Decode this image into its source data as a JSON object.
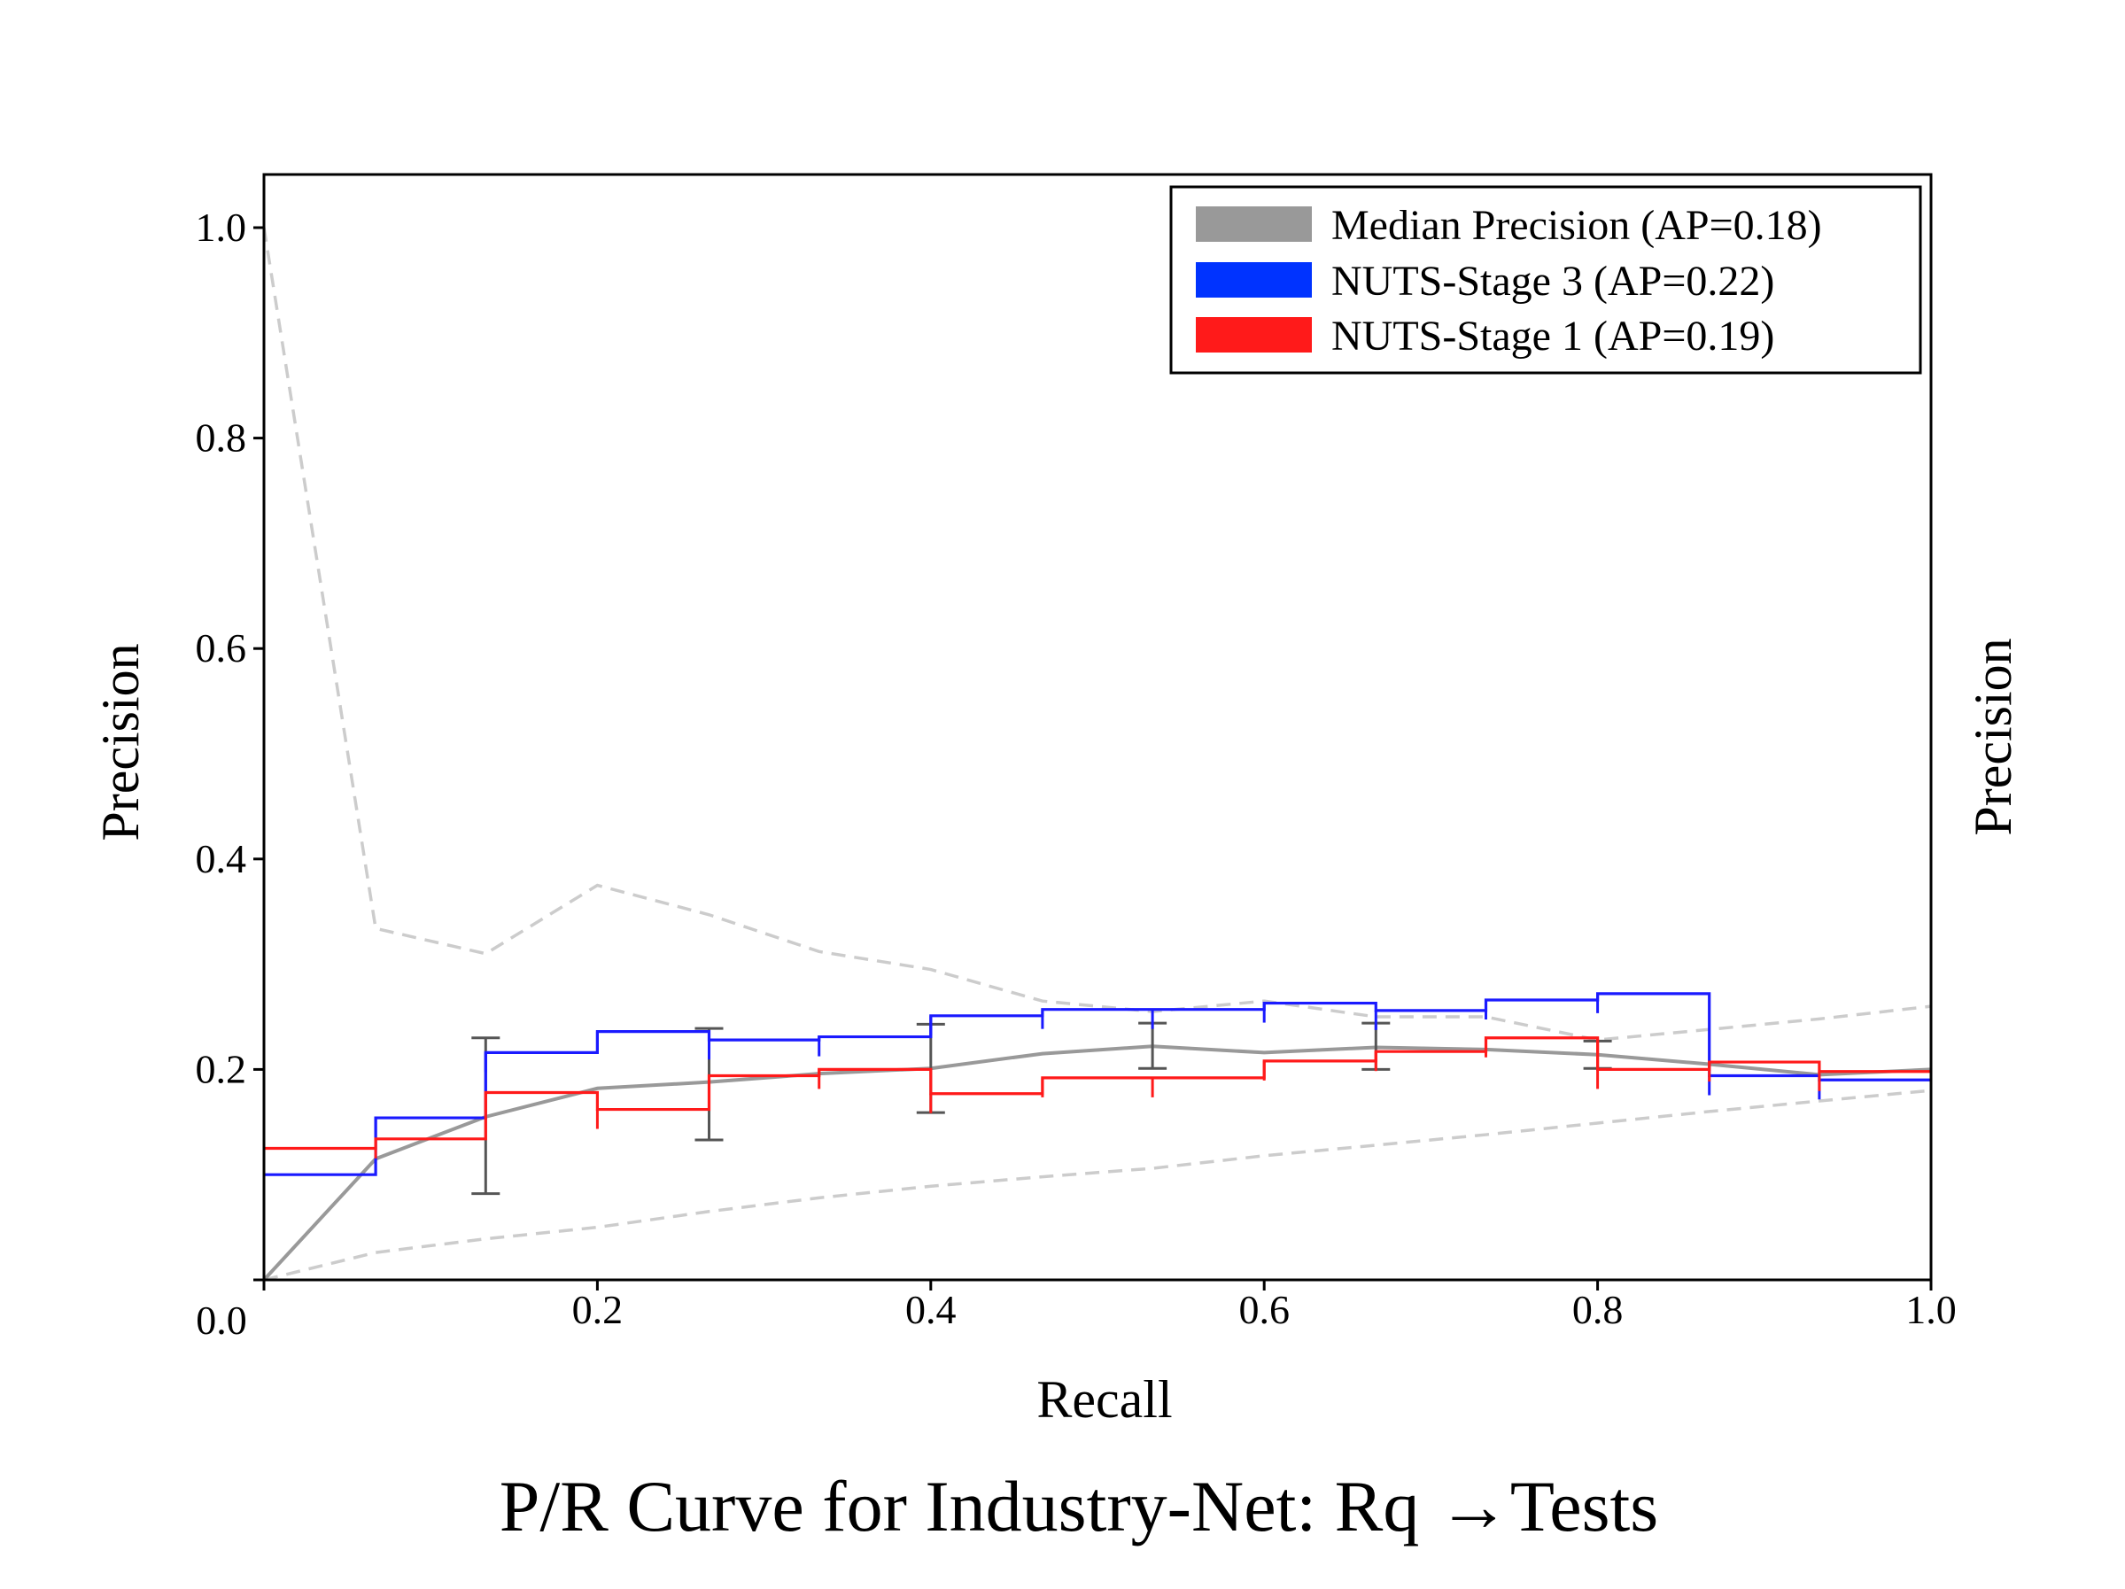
{
  "chart_data": {
    "type": "line",
    "title": "P/R Curve for Industry-Net: Rq →Tests",
    "xlabel": "Recall",
    "ylabel": "Precision",
    "ylabel_right": "Precision",
    "xlim": [
      0,
      1
    ],
    "ylim": [
      0,
      1.05
    ],
    "x_ticks": [
      "0.0",
      "0.2",
      "0.4",
      "0.6",
      "0.8",
      "1.0"
    ],
    "x_tick_values": [
      0,
      0.2,
      0.4,
      0.6,
      0.8,
      1.0
    ],
    "y_ticks": [
      "0.2",
      "0.4",
      "0.6",
      "0.8",
      "1.0"
    ],
    "y_tick_values": [
      0.2,
      0.4,
      0.6,
      0.8,
      1.0
    ],
    "grid": false,
    "legend_position": "top-right",
    "series": [
      {
        "name": "Median Precision (AP=0.18)",
        "style": "line",
        "color": "#999999",
        "x": [
          0,
          0.067,
          0.133,
          0.2,
          0.267,
          0.333,
          0.4,
          0.467,
          0.533,
          0.6,
          0.667,
          0.733,
          0.8,
          0.867,
          0.933,
          1.0
        ],
        "y": [
          0,
          0.115,
          0.155,
          0.182,
          0.188,
          0.196,
          0.201,
          0.215,
          0.222,
          0.216,
          0.221,
          0.219,
          0.214,
          0.205,
          0.195,
          0.2
        ],
        "error_bars": [
          {
            "x": 0.133,
            "low": 0.082,
            "high": 0.23
          },
          {
            "x": 0.267,
            "low": 0.133,
            "high": 0.239
          },
          {
            "x": 0.4,
            "low": 0.159,
            "high": 0.243
          },
          {
            "x": 0.533,
            "low": 0.201,
            "high": 0.244
          },
          {
            "x": 0.667,
            "low": 0.2,
            "high": 0.244
          },
          {
            "x": 0.8,
            "low": 0.201,
            "high": 0.227
          }
        ]
      },
      {
        "name": "NUTS-Stage 3 (AP=0.22)",
        "style": "step",
        "color": "#1a1aff",
        "x": [
          0,
          0.067,
          0.133,
          0.2,
          0.267,
          0.333,
          0.4,
          0.467,
          0.533,
          0.6,
          0.667,
          0.733,
          0.8,
          0.867,
          0.933,
          1.0
        ],
        "y": [
          0.1,
          0.154,
          0.216,
          0.236,
          0.228,
          0.231,
          0.251,
          0.257,
          0.257,
          0.263,
          0.256,
          0.266,
          0.272,
          0.194,
          0.19,
          0.19
        ]
      },
      {
        "name": "NUTS-Stage 1 (AP=0.19)",
        "style": "step",
        "color": "#ff1a1a",
        "x": [
          0,
          0.067,
          0.133,
          0.2,
          0.267,
          0.333,
          0.4,
          0.467,
          0.533,
          0.6,
          0.667,
          0.733,
          0.8,
          0.867,
          0.933,
          1.0
        ],
        "y": [
          0.125,
          0.134,
          0.178,
          0.162,
          0.194,
          0.2,
          0.177,
          0.192,
          0.192,
          0.208,
          0.217,
          0.23,
          0.2,
          0.207,
          0.198,
          0.198
        ]
      },
      {
        "style": "dashed",
        "color": "#cccccc",
        "x": [
          0,
          0.067,
          0.133,
          0.2,
          0.267,
          0.333,
          0.4,
          0.467,
          0.533,
          0.6,
          0.667,
          0.733,
          0.8,
          0.867,
          0.933,
          1.0
        ],
        "y": [
          1.0,
          0.334,
          0.31,
          0.375,
          0.347,
          0.312,
          0.295,
          0.265,
          0.255,
          0.265,
          0.25,
          0.25,
          0.228,
          0.238,
          0.248,
          0.26
        ]
      },
      {
        "style": "dashed",
        "color": "#cccccc",
        "x": [
          0,
          0.067,
          0.133,
          0.2,
          0.267,
          0.333,
          0.4,
          0.467,
          0.533,
          0.6,
          0.667,
          0.733,
          0.8,
          0.867,
          0.933,
          1.0
        ],
        "y": [
          0,
          0.026,
          0.039,
          0.05,
          0.065,
          0.078,
          0.089,
          0.098,
          0.106,
          0.118,
          0.128,
          0.138,
          0.149,
          0.16,
          0.17,
          0.18
        ]
      }
    ]
  }
}
